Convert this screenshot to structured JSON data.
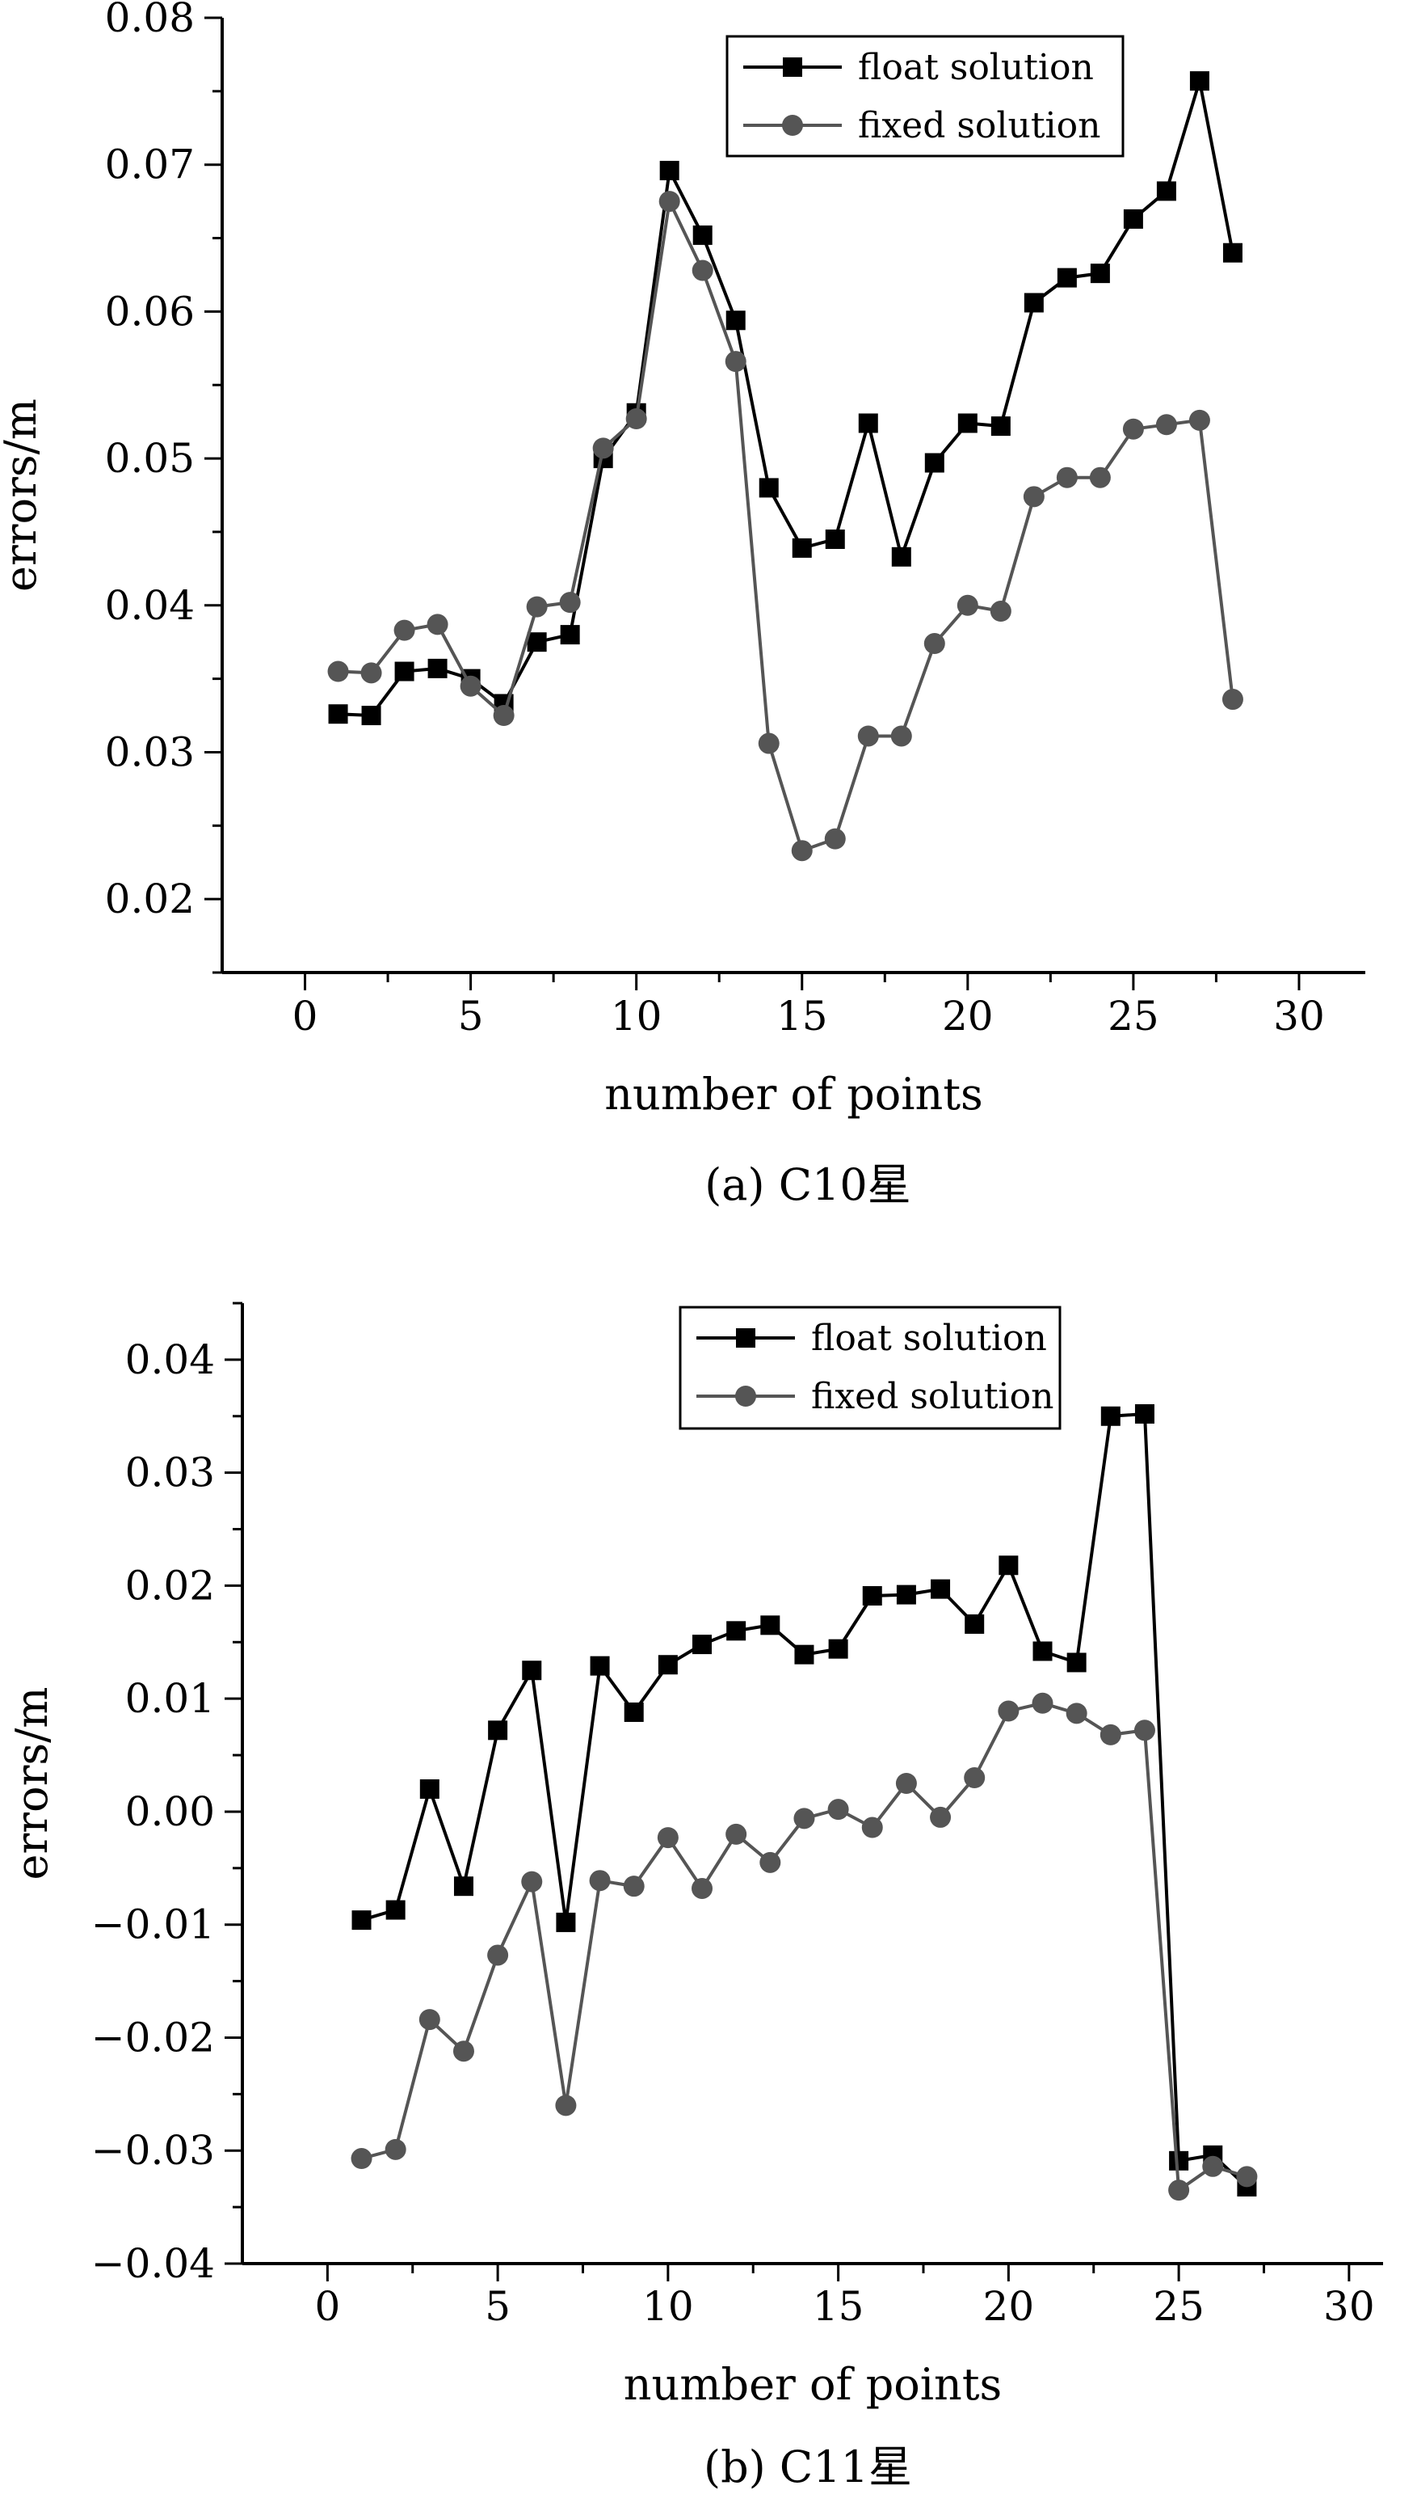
{
  "figure": {
    "colors": {
      "float": "#000000",
      "fixed": "#555555",
      "axis": "#000000",
      "background": "#ffffff"
    }
  },
  "chart_data": [
    {
      "type": "line",
      "caption": "(a) C10星",
      "xlabel": "number of points",
      "ylabel": "errors/m",
      "xlim": [
        -2.5,
        32
      ],
      "ylim": [
        0.015,
        0.08
      ],
      "xticks": [
        0,
        5,
        10,
        15,
        20,
        25,
        30
      ],
      "xtick_labels": [
        "0",
        "5",
        "10",
        "15",
        "20",
        "25",
        "30"
      ],
      "yticks": [
        0.02,
        0.03,
        0.04,
        0.05,
        0.06,
        0.07,
        0.08
      ],
      "ytick_labels": [
        "0.02",
        "0.03",
        "0.04",
        "0.05",
        "0.06",
        "0.07",
        "0.08"
      ],
      "legend_position": "top-right",
      "series": [
        {
          "name": "float solution",
          "marker": "square",
          "x": [
            1,
            2,
            3,
            4,
            5,
            6,
            7,
            8,
            9,
            10,
            11,
            12,
            13,
            14,
            15,
            16,
            17,
            18,
            19,
            20,
            21,
            22,
            23,
            24,
            25,
            26,
            27,
            28
          ],
          "values": [
            0.0326,
            0.0325,
            0.0355,
            0.0357,
            0.035,
            0.0333,
            0.0375,
            0.038,
            0.05,
            0.0531,
            0.0696,
            0.0652,
            0.0594,
            0.048,
            0.0439,
            0.0445,
            0.0524,
            0.0433,
            0.0497,
            0.0524,
            0.0522,
            0.0606,
            0.0623,
            0.0626,
            0.0663,
            0.0682,
            0.0757,
            0.064
          ]
        },
        {
          "name": "fixed solution",
          "marker": "circle",
          "x": [
            1,
            2,
            3,
            4,
            5,
            6,
            7,
            8,
            9,
            10,
            11,
            12,
            13,
            14,
            15,
            16,
            17,
            18,
            19,
            20,
            21,
            22,
            23,
            24,
            25,
            26,
            27,
            28
          ],
          "values": [
            0.0355,
            0.0354,
            0.0383,
            0.0387,
            0.0345,
            0.0325,
            0.0399,
            0.0402,
            0.0507,
            0.0527,
            0.0675,
            0.0628,
            0.0566,
            0.0306,
            0.0233,
            0.0241,
            0.0311,
            0.0311,
            0.0374,
            0.04,
            0.0396,
            0.0474,
            0.0487,
            0.0487,
            0.052,
            0.0523,
            0.0526,
            0.0336
          ]
        }
      ]
    },
    {
      "type": "line",
      "caption": "(b) C11星",
      "xlabel": "number of points",
      "ylabel": "errors/m",
      "xlim": [
        -2.5,
        31
      ],
      "ylim": [
        -0.04,
        0.045
      ],
      "xticks": [
        0,
        5,
        10,
        15,
        20,
        25,
        30
      ],
      "xtick_labels": [
        "0",
        "5",
        "10",
        "15",
        "20",
        "25",
        "30"
      ],
      "yticks": [
        -0.04,
        -0.03,
        -0.02,
        -0.01,
        0.0,
        0.01,
        0.02,
        0.03,
        0.04
      ],
      "ytick_labels": [
        "−0.04",
        "−0.03",
        "−0.02",
        "−0.01",
        "0.00",
        "0.01",
        "0.02",
        "0.03",
        "0.04"
      ],
      "legend_position": "top-right",
      "series": [
        {
          "name": "float solution",
          "marker": "square",
          "x": [
            1,
            2,
            3,
            4,
            5,
            6,
            7,
            8,
            9,
            10,
            11,
            12,
            13,
            14,
            15,
            16,
            17,
            18,
            19,
            20,
            21,
            22,
            23,
            24,
            25,
            26,
            27
          ],
          "values": [
            -0.0096,
            -0.0087,
            0.002,
            -0.0066,
            0.0072,
            0.0125,
            -0.0098,
            0.0129,
            0.0088,
            0.013,
            0.0148,
            0.016,
            0.0165,
            0.0139,
            0.0144,
            0.0191,
            0.0192,
            0.0197,
            0.0166,
            0.0218,
            0.0142,
            0.0132,
            0.035,
            0.0352,
            -0.0309,
            -0.0304,
            -0.0332
          ]
        },
        {
          "name": "fixed solution",
          "marker": "circle",
          "x": [
            1,
            2,
            3,
            4,
            5,
            6,
            7,
            8,
            9,
            10,
            11,
            12,
            13,
            14,
            15,
            16,
            17,
            18,
            19,
            20,
            21,
            22,
            23,
            24,
            25,
            26,
            27
          ],
          "values": [
            -0.0307,
            -0.0299,
            -0.0184,
            -0.0212,
            -0.0127,
            -0.0062,
            -0.026,
            -0.0061,
            -0.0066,
            -0.0023,
            -0.0068,
            -0.002,
            -0.0045,
            -0.0006,
            0.0002,
            -0.0014,
            0.0025,
            -0.0005,
            0.003,
            0.0089,
            0.0096,
            0.0087,
            0.0068,
            0.0072,
            -0.0335,
            -0.0314,
            -0.0323
          ]
        }
      ]
    }
  ]
}
